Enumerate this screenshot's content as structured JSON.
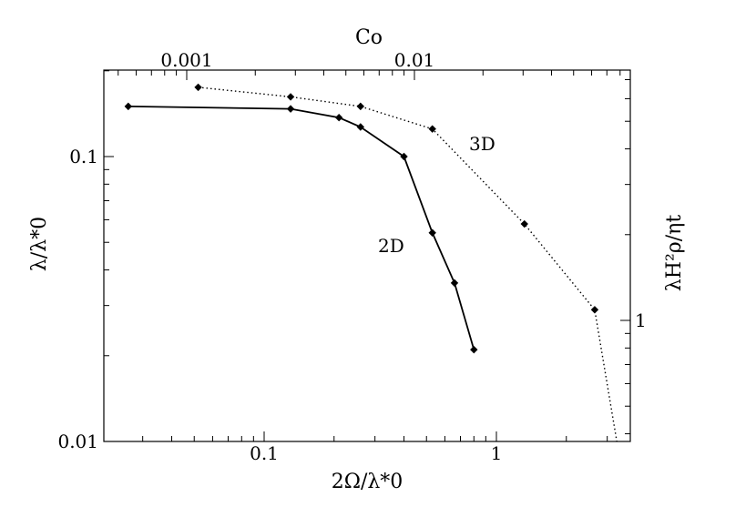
{
  "chart_data": {
    "type": "line",
    "xlabel": "2Ω/λ*0",
    "ylabel": "λ/λ*0",
    "x2label": "Co",
    "y2label": "λH²ρ/ηt",
    "xscale": "log",
    "yscale": "log",
    "xlim": [
      0.02,
      3.5
    ],
    "ylim": [
      0.01,
      0.19
    ],
    "x_ticks": [
      "0.1",
      "1"
    ],
    "y_ticks": [
      "0.01",
      "0.1"
    ],
    "x2_ticks": [
      "0.001",
      "0.01"
    ],
    "y2_ticks": [
      "1"
    ],
    "grid": false,
    "series": [
      {
        "name": "2D",
        "style": "solid",
        "x": [
          0.026,
          0.13,
          0.21,
          0.26,
          0.4,
          0.53,
          0.66,
          0.8
        ],
        "y": [
          0.15,
          0.147,
          0.137,
          0.127,
          0.1,
          0.054,
          0.036,
          0.021
        ]
      },
      {
        "name": "3D",
        "style": "dotted",
        "x": [
          0.052,
          0.13,
          0.26,
          0.53,
          1.32,
          2.65,
          3.3
        ],
        "y": [
          0.175,
          0.162,
          0.15,
          0.125,
          0.058,
          0.029,
          0.01
        ]
      }
    ]
  }
}
